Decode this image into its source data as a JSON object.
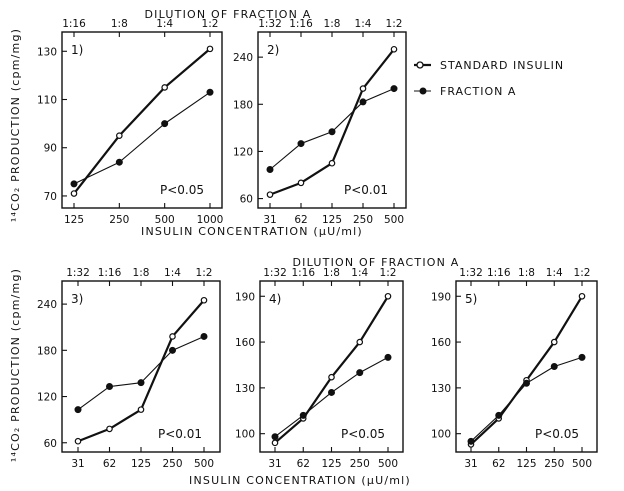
{
  "labels": {
    "dilution_top": "DILUTION OF FRACTION A",
    "dilution_mid": "DILUTION OF FRACTION A",
    "ylabel_top": "¹⁴CO₂ PRODUCTION (cpm/mg)",
    "ylabel_bottom": "¹⁴CO₂ PRODUCTION (cpm/mg)",
    "xlabel_top": "INSULIN CONCENTRATION (µU/ml)",
    "xlabel_bottom": "INSULIN CONCENTRATION (µU/ml)"
  },
  "legend": {
    "standard": "STANDARD INSULIN",
    "fraction": "FRACTION A"
  },
  "colors": {
    "ink": "#111111",
    "background": "#ffffff"
  },
  "chart_data": [
    {
      "type": "line",
      "panel_label": "1)",
      "annotation": "P<0.05",
      "categories": [
        "125",
        "250",
        "500",
        "1000"
      ],
      "dilution_ticks": [
        "1:16",
        "1:8",
        "1:4",
        "1:2"
      ],
      "ylim": [
        65,
        138
      ],
      "yticks": [
        70,
        90,
        110,
        130
      ],
      "series": [
        {
          "name": "STANDARD INSULIN",
          "marker": "open",
          "values": [
            71,
            95,
            115,
            131
          ]
        },
        {
          "name": "FRACTION A",
          "marker": "filled",
          "values": [
            75,
            84,
            100,
            113
          ]
        }
      ]
    },
    {
      "type": "line",
      "panel_label": "2)",
      "annotation": "P<0.01",
      "categories": [
        "31",
        "62",
        "125",
        "250",
        "500"
      ],
      "dilution_ticks": [
        "1:32",
        "1:16",
        "1:8",
        "1:4",
        "1:2"
      ],
      "ylim": [
        48,
        272
      ],
      "yticks": [
        60,
        120,
        180,
        240
      ],
      "series": [
        {
          "name": "STANDARD INSULIN",
          "marker": "open",
          "values": [
            65,
            80,
            105,
            200,
            250
          ]
        },
        {
          "name": "FRACTION A",
          "marker": "filled",
          "values": [
            97,
            130,
            145,
            183,
            200
          ]
        }
      ]
    },
    {
      "type": "line",
      "panel_label": "3)",
      "annotation": "P<0.01",
      "categories": [
        "31",
        "62",
        "125",
        "250",
        "500"
      ],
      "dilution_ticks": [
        "1:32",
        "1:16",
        "1:8",
        "1:4",
        "1:2"
      ],
      "ylim": [
        48,
        270
      ],
      "yticks": [
        60,
        120,
        180,
        240
      ],
      "series": [
        {
          "name": "STANDARD INSULIN",
          "marker": "open",
          "values": [
            62,
            78,
            103,
            198,
            245
          ]
        },
        {
          "name": "FRACTION A",
          "marker": "filled",
          "values": [
            103,
            133,
            138,
            180,
            198
          ]
        }
      ]
    },
    {
      "type": "line",
      "panel_label": "4)",
      "annotation": "P<0.05",
      "categories": [
        "31",
        "62",
        "125",
        "250",
        "500"
      ],
      "dilution_ticks": [
        "1:32",
        "1:16",
        "1:8",
        "1:4",
        "1:2"
      ],
      "ylim": [
        88,
        200
      ],
      "yticks": [
        100,
        130,
        160,
        190
      ],
      "series": [
        {
          "name": "STANDARD INSULIN",
          "marker": "open",
          "values": [
            94,
            110,
            137,
            160,
            190
          ]
        },
        {
          "name": "FRACTION A",
          "marker": "filled",
          "values": [
            98,
            112,
            127,
            140,
            150
          ]
        }
      ]
    },
    {
      "type": "line",
      "panel_label": "5)",
      "annotation": "P<0.05",
      "categories": [
        "31",
        "62",
        "125",
        "250",
        "500"
      ],
      "dilution_ticks": [
        "1:32",
        "1:16",
        "1:8",
        "1:4",
        "1:2"
      ],
      "ylim": [
        88,
        200
      ],
      "yticks": [
        100,
        130,
        160,
        190
      ],
      "series": [
        {
          "name": "STANDARD INSULIN",
          "marker": "open",
          "values": [
            93,
            110,
            135,
            160,
            190
          ]
        },
        {
          "name": "FRACTION A",
          "marker": "filled",
          "values": [
            95,
            112,
            133,
            144,
            150
          ]
        }
      ]
    }
  ]
}
